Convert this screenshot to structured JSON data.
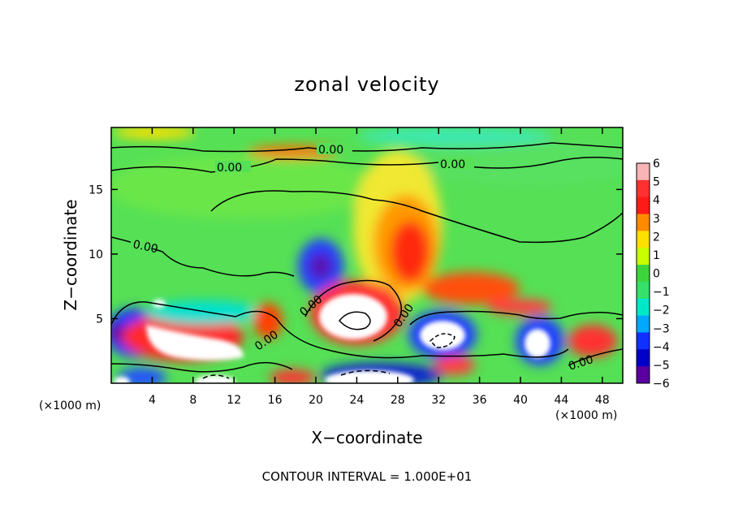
{
  "chart_data": {
    "type": "heatmap",
    "title": "zonal velocity",
    "xlabel": "X−coordinate",
    "ylabel": "Z−coordinate",
    "x_unit_left": "(×1000 m)",
    "x_unit_right": "(×1000 m)",
    "footer": "CONTOUR INTERVAL = 1.000E+01",
    "xlim": [
      0,
      50
    ],
    "ylim": [
      0,
      19.8
    ],
    "x_ticks": [
      4,
      8,
      12,
      16,
      20,
      24,
      28,
      32,
      36,
      40,
      44,
      48
    ],
    "x_tick_labels": [
      "4",
      "8",
      "12",
      "16",
      "20",
      "24",
      "28",
      "32",
      "36",
      "40",
      "44",
      "48"
    ],
    "y_ticks": [
      5,
      10,
      15
    ],
    "y_tick_labels": [
      "5",
      "10",
      "15"
    ],
    "colorbar": {
      "min": -6,
      "max": 6,
      "ticks": [
        6,
        5,
        4,
        3,
        2,
        1,
        0,
        -1,
        -2,
        -3,
        -4,
        -5,
        -6
      ],
      "tick_labels": [
        "6",
        "5",
        "4",
        "3",
        "2",
        "1",
        "0",
        "−1",
        "−2",
        "−3",
        "−4",
        "−5",
        "−6"
      ],
      "colors": [
        "#f8b4b4",
        "#ff3030",
        "#ff1a1a",
        "#ff8a00",
        "#ffe000",
        "#c8ff00",
        "#3cd63c",
        "#36e06a",
        "#00e8c8",
        "#00a8ff",
        "#1030ff",
        "#0000c8",
        "#5a00a0"
      ]
    },
    "contour_labels": [
      "0.00",
      "0.00",
      "0.00",
      "0.00",
      "0.00",
      "0.00",
      "0.00",
      "0.00"
    ],
    "features": [
      {
        "x": 30,
        "z": 11,
        "value": 5
      },
      {
        "x": 28,
        "z": 7,
        "value": 4
      },
      {
        "x": 24,
        "z": 5,
        "value": 7
      },
      {
        "x": 20.5,
        "z": 9,
        "value": -5
      },
      {
        "x": 8,
        "z": 3.5,
        "value": 6.5
      },
      {
        "x": 32,
        "z": 3.5,
        "value": 7
      },
      {
        "x": 41,
        "z": 3,
        "value": 7
      },
      {
        "x": 1,
        "z": 3.8,
        "value": -5
      },
      {
        "x": 26,
        "z": 0.5,
        "value": 6
      },
      {
        "x": 10,
        "z": 0.5,
        "value": 6
      },
      {
        "x": 15.5,
        "z": 4.5,
        "value": 4
      },
      {
        "x": 38,
        "z": 6.2,
        "value": 4
      },
      {
        "x": 12,
        "z": 11,
        "value": 1
      },
      {
        "x": 35,
        "z": 16,
        "value": 1
      },
      {
        "x": 18,
        "z": 17.6,
        "value": 4
      },
      {
        "x": 4,
        "z": 19.3,
        "value": 3
      },
      {
        "x": 35,
        "z": 19,
        "value": -2
      },
      {
        "x": 23,
        "z": 1.2,
        "value": -5
      },
      {
        "x": 47,
        "z": 2,
        "value": 5
      }
    ]
  }
}
